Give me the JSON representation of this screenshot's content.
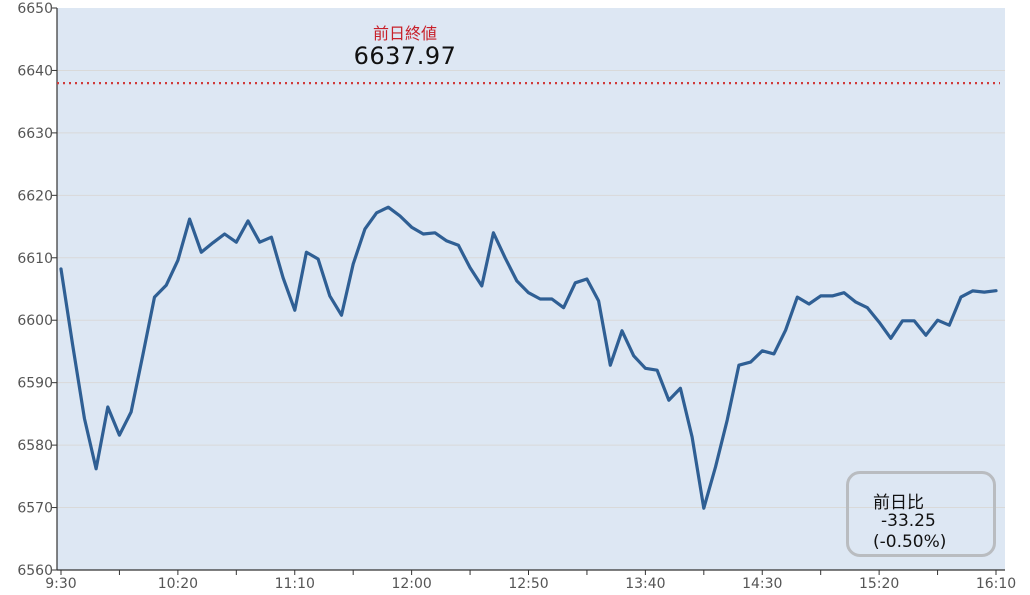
{
  "chart_data": {
    "type": "line",
    "title": "",
    "xlabel": "",
    "ylabel": "",
    "ylim": [
      6560,
      6650
    ],
    "yticks": [
      6560,
      6570,
      6580,
      6590,
      6600,
      6610,
      6620,
      6630,
      6640,
      6650
    ],
    "xlim": [
      "9:30",
      "16:10"
    ],
    "xtick_labels": [
      "9:30",
      "10:20",
      "11:10",
      "12:00",
      "12:50",
      "13:40",
      "14:30",
      "15:20",
      "16:10"
    ],
    "x_interval_minutes": 5,
    "grid": "horizontal",
    "colors": {
      "line": "#2f5f94",
      "plot_bg": "#dde7f3",
      "reference_line": "#d03a3a",
      "grid": "#d9d9d9"
    },
    "series": [
      {
        "values": [
          6608.2,
          6596.0,
          6584.3,
          6576.2,
          6586.1,
          6581.6,
          6585.3,
          6594.4,
          6603.7,
          6605.6,
          6609.6,
          6616.2,
          6610.9,
          6612.4,
          6613.8,
          6612.5,
          6615.9,
          6612.5,
          6613.3,
          6606.8,
          6601.6,
          6610.9,
          6609.8,
          6603.9,
          6600.8,
          6609.0,
          6614.6,
          6617.2,
          6618.1,
          6616.7,
          6614.9,
          6613.8,
          6614.0,
          6612.7,
          6612.0,
          6608.4,
          6605.5,
          6614.0,
          6610.0,
          6606.3,
          6604.4,
          6603.4,
          6603.4,
          6602.0,
          6606.0,
          6606.6,
          6603.1,
          6592.8,
          6598.3,
          6594.3,
          6592.3,
          6592.0,
          6587.2,
          6589.1,
          6581.3,
          6569.9,
          6576.5,
          6584.0,
          6592.8,
          6593.3,
          6595.1,
          6594.6,
          6598.4,
          6603.7,
          6602.6,
          6603.9,
          6603.9,
          6604.4,
          6602.9,
          6602.0,
          6599.7,
          6597.1,
          6599.9,
          6599.9,
          6597.6,
          6600.0,
          6599.2,
          6603.7,
          6604.7,
          6604.5,
          6604.72
        ]
      }
    ],
    "reference_line": {
      "label": "前日終値",
      "value": 6637.97,
      "value_text": "6637.97",
      "style": "dotted"
    },
    "annotation": {
      "label": "前日比",
      "change": "-33.25",
      "change_pct": "(-0.50%)"
    }
  }
}
